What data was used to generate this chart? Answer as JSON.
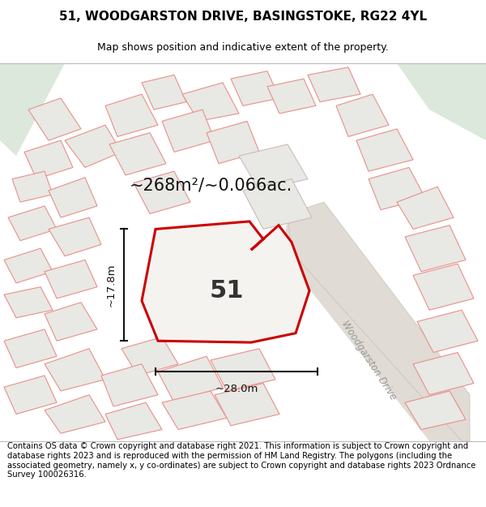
{
  "title_line1": "51, WOODGARSTON DRIVE, BASINGSTOKE, RG22 4YL",
  "title_line2": "Map shows position and indicative extent of the property.",
  "footer_text": "Contains OS data © Crown copyright and database right 2021. This information is subject to Crown copyright and database rights 2023 and is reproduced with the permission of HM Land Registry. The polygons (including the associated geometry, namely x, y co-ordinates) are subject to Crown copyright and database rights 2023 Ordnance Survey 100026316.",
  "area_label": "~268m²/~0.066ac.",
  "width_label": "~28.0m",
  "height_label": "~17.8m",
  "plot_number": "51",
  "road_label": "Woodgarston Drive",
  "map_bg": "#f2f2ee",
  "green_corner_color": "#dce8dc",
  "building_fill": "#e8e8e4",
  "building_stroke": "#e8908a",
  "plot_fill": "#f5f3f0",
  "plot_stroke": "#cc0000",
  "road_fill": "#e0dbd4",
  "road_stroke": "#bbbbbb",
  "dim_color": "#111111",
  "title_fontsize": 11,
  "subtitle_fontsize": 9,
  "footer_fontsize": 7.2,
  "plot_label_fontsize": 22,
  "area_fontsize": 15,
  "dim_fontsize": 9.5
}
